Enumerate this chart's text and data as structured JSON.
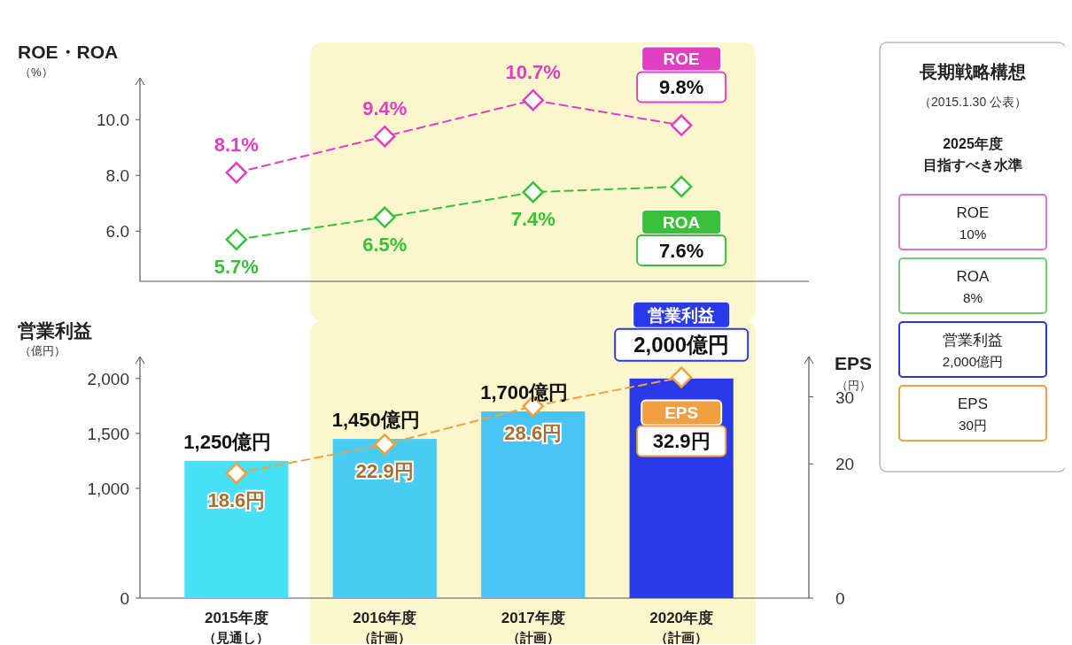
{
  "chart_data": [
    {
      "type": "line",
      "ylabel": "ROE・ROA（%）",
      "categories": [
        "2015年度（見通し）",
        "2016年度（計画）",
        "2017年度（計画）",
        "2020年度（計画）"
      ],
      "series": [
        {
          "name": "ROE",
          "color": "#e040c0",
          "values": [
            8.1,
            9.4,
            10.7,
            9.8
          ],
          "value_labels": [
            "8.1%",
            "9.4%",
            "10.7%",
            "9.8%"
          ]
        },
        {
          "name": "ROA",
          "color": "#38c038",
          "values": [
            5.7,
            6.5,
            7.4,
            7.6
          ],
          "value_labels": [
            "5.7%",
            "6.5%",
            "7.4%",
            "7.6%"
          ]
        }
      ],
      "ylim": [
        4.2,
        11.5
      ],
      "yticks": [
        {
          "value": 6,
          "label": "6.0"
        },
        {
          "value": 8,
          "label": "8.0"
        },
        {
          "value": 10,
          "label": "10.0"
        }
      ],
      "tick_labels": "y",
      "marker": "diamond",
      "line_style": "dashed",
      "bands": [
        {
          "axis": "x",
          "from": "2016年度（計画）",
          "to": "2020年度（計画）",
          "color": "#fcf6cc"
        }
      ]
    },
    {
      "type": "bar",
      "ylabel": "営業利益（億円）",
      "y2label": "EPS（円）",
      "categories": [
        "2015年度（見通し）",
        "2016年度（計画）",
        "2017年度（計画）",
        "2020年度（計画）"
      ],
      "series": [
        {
          "name": "営業利益",
          "colors": [
            "#48e0f4",
            "#48ccf4",
            "#48c4f4",
            "#2a3ae8"
          ],
          "values": [
            1250,
            1450,
            1700,
            2000
          ],
          "value_labels": [
            "1,250億円",
            "1,450億円",
            "1,700億円",
            "2,000億円"
          ]
        },
        {
          "name": "EPS",
          "type": "line",
          "axis": "y2",
          "color": "#f0a040",
          "values": [
            18.6,
            22.9,
            28.6,
            32.9
          ],
          "value_labels": [
            "18.6円",
            "22.9円",
            "28.6円",
            "32.9円"
          ]
        }
      ],
      "ylim": [
        0,
        2200
      ],
      "yticks": [
        0,
        {
          "value": 1000,
          "label": "1,000"
        },
        {
          "value": 1500,
          "label": "1,500"
        },
        {
          "value": 2000,
          "label": "2,000"
        }
      ],
      "y2lim": [
        0,
        36
      ],
      "y2ticks": [
        0,
        20,
        30
      ],
      "marker": "diamond",
      "line_style": "dashed",
      "bands": [
        {
          "axis": "x",
          "from": "2016年度（計画）",
          "to": "2020年度（計画）",
          "color": "#fcf6cc"
        }
      ]
    },
    {
      "type": "other",
      "title": "長期戦略構想",
      "subtitle": "（2015.1.30 公表）",
      "annotations": [
        "2025年度",
        "目指すべき水準",
        "ROE\n10%",
        "ROA\n8%",
        "営業利益2,000億円",
        "EPS\n30円"
      ],
      "colors": [
        "#e070d8",
        "#70d070",
        "#2838d0",
        "#f0a040"
      ]
    }
  ]
}
